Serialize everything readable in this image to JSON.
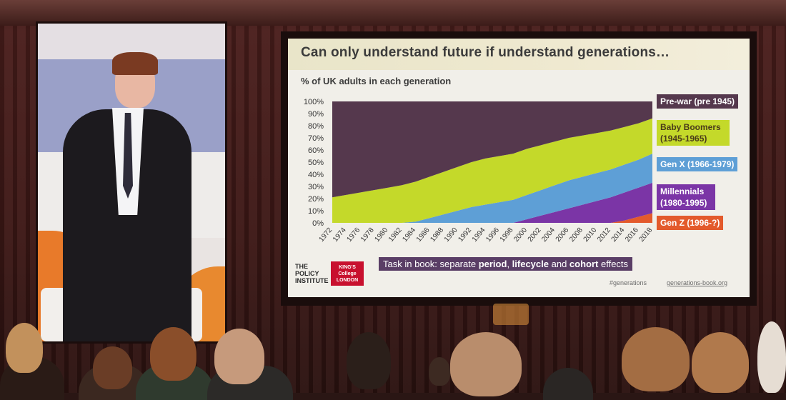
{
  "slide": {
    "title": "Can only understand future if understand generations…",
    "task_note_prefix": "Task in book: separate ",
    "task_note_period": "period",
    "task_note_sep1": ", ",
    "task_note_lifecycle": "lifecycle",
    "task_note_and": " and ",
    "task_note_cohort": "cohort",
    "task_note_suffix": " effects",
    "logo_policy": "THE POLICY INSTITUTE",
    "logo_kings": "KING'S College LONDON",
    "hashtag": "#generations",
    "website": "generations-book.org"
  },
  "colors": {
    "prewar": "#55384d",
    "boomers": "#c4d92a",
    "genx": "#5e9fd6",
    "millennials": "#7b35a6",
    "genz": "#e35a2c",
    "slide_bg": "#f1efe9"
  },
  "chart_data": {
    "type": "area",
    "stacked": true,
    "title": "% of UK adults in each generation",
    "xlabel": "",
    "ylabel": "",
    "ylim": [
      0,
      100
    ],
    "y_ticks": [
      "0%",
      "10%",
      "20%",
      "30%",
      "40%",
      "50%",
      "60%",
      "70%",
      "80%",
      "90%",
      "100%"
    ],
    "x": [
      1972,
      1974,
      1976,
      1978,
      1980,
      1982,
      1984,
      1986,
      1988,
      1990,
      1992,
      1994,
      1996,
      1998,
      2000,
      2002,
      2004,
      2006,
      2008,
      2010,
      2012,
      2014,
      2016,
      2018
    ],
    "legend_placement": "right",
    "series": [
      {
        "name": "Gen Z (1996-?)",
        "color_key": "genz",
        "values": [
          0,
          0,
          0,
          0,
          0,
          0,
          0,
          0,
          0,
          0,
          0,
          0,
          0,
          0,
          0,
          0,
          0,
          0,
          0,
          0,
          0,
          2,
          5,
          8
        ]
      },
      {
        "name": "Millennials (1980-1995)",
        "color_key": "millennials",
        "values": [
          0,
          0,
          0,
          0,
          0,
          0,
          0,
          0,
          0,
          0,
          0,
          0,
          0,
          0,
          3,
          6,
          9,
          12,
          15,
          18,
          21,
          23,
          24,
          25
        ]
      },
      {
        "name": "Gen X (1966-1979)",
        "color_key": "genx",
        "values": [
          0,
          0,
          0,
          0,
          0,
          0,
          1,
          4,
          7,
          10,
          13,
          15,
          17,
          19,
          20,
          21,
          22,
          23,
          23,
          23,
          23,
          23,
          23,
          24
        ]
      },
      {
        "name": "Baby Boomers (1945-1965)",
        "color_key": "boomers",
        "values": [
          21,
          23,
          25,
          27,
          29,
          31,
          33,
          34,
          35,
          36,
          37,
          38,
          38,
          38,
          38,
          37,
          36,
          35,
          34,
          33,
          32,
          31,
          30,
          29
        ]
      },
      {
        "name": "Pre-war (pre 1945)",
        "color_key": "prewar",
        "values": [
          79,
          77,
          75,
          73,
          71,
          69,
          66,
          62,
          58,
          54,
          50,
          47,
          45,
          43,
          39,
          36,
          33,
          30,
          28,
          26,
          24,
          21,
          18,
          14
        ]
      }
    ]
  }
}
